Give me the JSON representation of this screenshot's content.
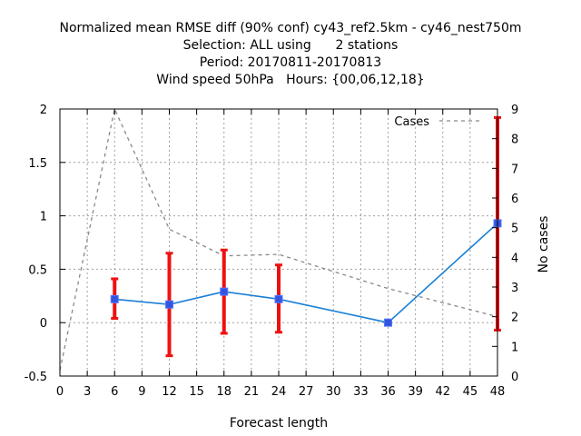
{
  "chart_data": {
    "type": "line",
    "title_lines": [
      "Normalized mean RMSE diff (90% conf) cy43_ref2.5km - cy46_nest750m",
      "Selection: ALL using      2 stations",
      "Period: 20170811-20170813",
      "Wind speed 50hPa   Hours: {00,06,12,18}"
    ],
    "xlabel": "Forecast length",
    "ylabel": "",
    "y2label": "No cases",
    "xlim": [
      0,
      48
    ],
    "ylim": [
      -0.5,
      2
    ],
    "y2lim": [
      0,
      9
    ],
    "xticks": [
      0,
      3,
      6,
      9,
      12,
      15,
      18,
      21,
      24,
      27,
      30,
      33,
      36,
      39,
      42,
      45,
      48
    ],
    "yticks": [
      -0.5,
      0,
      0.5,
      1,
      1.5,
      2
    ],
    "ytick_labels": [
      "-0.5",
      "0",
      "0.5",
      "1",
      "1.5",
      "2"
    ],
    "y2ticks": [
      0,
      1,
      2,
      3,
      4,
      5,
      6,
      7,
      8,
      9
    ],
    "grid": true,
    "legend_position": "top-right",
    "series": [
      {
        "name": "",
        "color": "#1a7fd6",
        "marker_color": "#3355dd",
        "axis": "left",
        "x": [
          6,
          12,
          18,
          24,
          36,
          48
        ],
        "y": [
          0.22,
          0.17,
          0.29,
          0.22,
          0.0,
          0.93
        ],
        "err_low": [
          0.04,
          -0.31,
          -0.1,
          -0.09,
          -0.01,
          -0.07
        ],
        "err_high": [
          0.41,
          0.65,
          0.68,
          0.54,
          0.01,
          1.92
        ],
        "err_color": "#ee1111"
      },
      {
        "name": "Cases",
        "color": "#888888",
        "axis": "right",
        "style": "dashed",
        "x": [
          0,
          6,
          12,
          18,
          24,
          36,
          48
        ],
        "y": [
          0.2,
          9.0,
          4.95,
          4.05,
          4.1,
          2.95,
          2.0
        ]
      }
    ]
  }
}
